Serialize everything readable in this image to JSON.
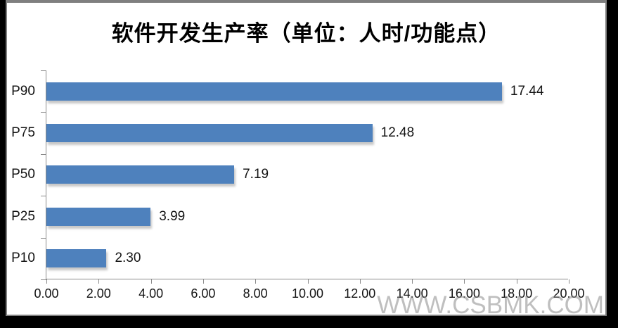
{
  "watermark_text": "WWW.CSBMK.COM",
  "chart_data": {
    "type": "bar",
    "orientation": "horizontal",
    "title": "软件开发生产率（单位：人时/功能点）",
    "categories": [
      "P90",
      "P75",
      "P50",
      "P25",
      "P10"
    ],
    "values": [
      17.44,
      12.48,
      7.19,
      3.99,
      2.3
    ],
    "value_labels": [
      "17.44",
      "12.48",
      "7.19",
      "3.99",
      "2.30"
    ],
    "xlabel": "",
    "ylabel": "",
    "xlim": [
      0,
      20
    ],
    "xtick_labels": [
      "0.00",
      "2.00",
      "4.00",
      "6.00",
      "8.00",
      "10.00",
      "12.00",
      "14.00",
      "16.00",
      "18.00",
      "20.00"
    ],
    "bar_color": "#4E81BD",
    "axis_color": "#8a8a8a",
    "grid": false,
    "legend_position": "none"
  }
}
